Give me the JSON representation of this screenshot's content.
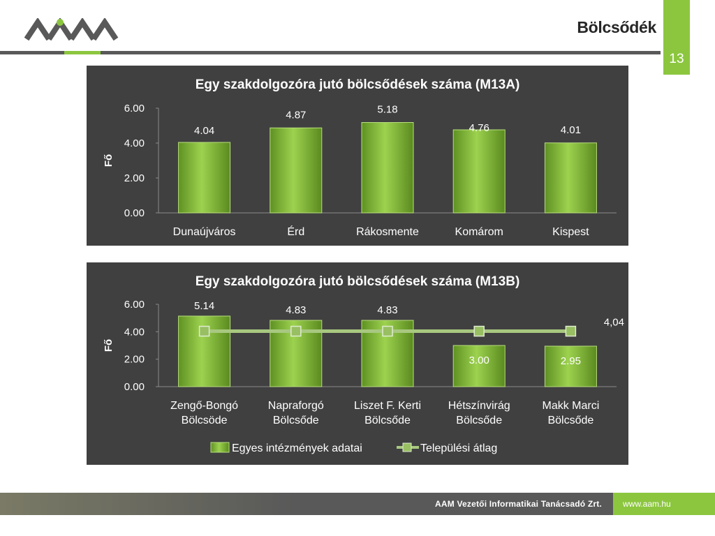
{
  "header": {
    "title": "Bölcsődék",
    "page_number": "13"
  },
  "colors": {
    "accent": "#8cc63f",
    "panel_bg": "#404040",
    "bar_green": "#7fb832",
    "line_color": "#a8c880",
    "footer_bg": "#595959"
  },
  "footer": {
    "company": "AAM Vezetői Informatikai Tanácsadó Zrt.",
    "website": "www.aam.hu"
  },
  "chart_data": [
    {
      "type": "bar",
      "title": "Egy szakdolgozóra jutó bölcsődések száma (M13A)",
      "ylabel": "Fő",
      "xlabel": "",
      "ylim": [
        0,
        6
      ],
      "yticks": [
        "0.00",
        "2.00",
        "4.00",
        "6.00"
      ],
      "categories": [
        "Dunaújváros",
        "Érd",
        "Rákosmente",
        "Komárom",
        "Kispest"
      ],
      "values": [
        4.04,
        4.87,
        5.18,
        4.76,
        4.01
      ],
      "data_labels": [
        "4.04",
        "4.87",
        "5.18",
        "4.76",
        "4.01"
      ],
      "grid": false,
      "legend": "none"
    },
    {
      "type": "bar",
      "title": "Egy szakdolgozóra jutó bölcsődések száma (M13B)",
      "ylabel": "Fő",
      "xlabel": "",
      "ylim": [
        0,
        6
      ],
      "yticks": [
        "0.00",
        "2.00",
        "4.00",
        "6.00"
      ],
      "categories": [
        [
          "Zengő-Bongó",
          "Bölcsöde"
        ],
        [
          "Napraforgó",
          "Bölcsőde"
        ],
        [
          "Liszet F. Kerti",
          "Bölcsőde"
        ],
        [
          "Hétszínvirág",
          "Bölcsőde"
        ],
        [
          "Makk Marci",
          "Bölcsőde"
        ]
      ],
      "series": [
        {
          "name": "Egyes intézmények adatai",
          "type": "bar",
          "values": [
            5.14,
            4.83,
            4.83,
            3.0,
            2.95
          ],
          "data_labels": [
            "5.14",
            "4.83",
            "4.83",
            "3.00",
            "2.95"
          ]
        },
        {
          "name": "Települési átlag",
          "type": "line",
          "values": [
            4.04,
            4.04,
            4.04,
            4.04,
            4.04
          ],
          "end_label": "4,04"
        }
      ],
      "grid": false,
      "legend": "bottom"
    }
  ]
}
